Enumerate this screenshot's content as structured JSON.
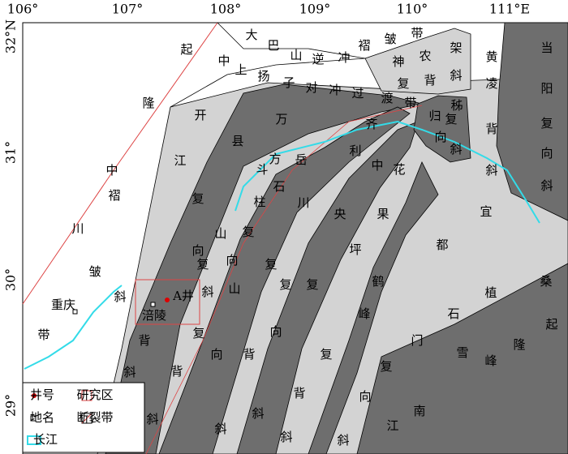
{
  "axes": {
    "lon_ticks": [
      "106°",
      "107°",
      "108°",
      "109°",
      "110°",
      "111°E"
    ],
    "lat_ticks": [
      "32°N",
      "31°",
      "30°",
      "29°"
    ]
  },
  "labels": [
    "大",
    "巴",
    "山",
    "逆",
    "冲",
    "褶",
    "皱",
    "带",
    "中",
    "上",
    "扬",
    "子",
    "对",
    "冲",
    "过",
    "渡",
    "带",
    "神",
    "农",
    "架",
    "复",
    "背",
    "斜",
    "黄",
    "凌",
    "背",
    "斜",
    "当",
    "阳",
    "复",
    "向",
    "斜",
    "秭",
    "归",
    "复",
    "向",
    "斜",
    "起",
    "隆",
    "开",
    "县",
    "万",
    "齐",
    "中",
    "江",
    "斗",
    "方",
    "石",
    "岳",
    "利",
    "中",
    "花",
    "柱",
    "川",
    "宜",
    "复",
    "川",
    "褶",
    "山",
    "复",
    "央",
    "果",
    "都",
    "向",
    "复",
    "向",
    "坪",
    "复",
    "皱",
    "斜",
    "山",
    "复",
    "复",
    "鹤",
    "植",
    "桑",
    "斜",
    "峰",
    "石",
    "起",
    "带",
    "背",
    "复",
    "向",
    "门",
    "隆",
    "向",
    "背",
    "复",
    "雪",
    "峰",
    "斜",
    "背",
    "复",
    "南",
    "背",
    "向",
    "江",
    "斜",
    "斜",
    "斜",
    "斜",
    "斜"
  ],
  "places": {
    "chongqing": "重庆",
    "fuling": "涪陵",
    "well": "A井"
  },
  "legend": [
    "井号",
    "研究区",
    "地名",
    "断裂带",
    "长江"
  ]
}
